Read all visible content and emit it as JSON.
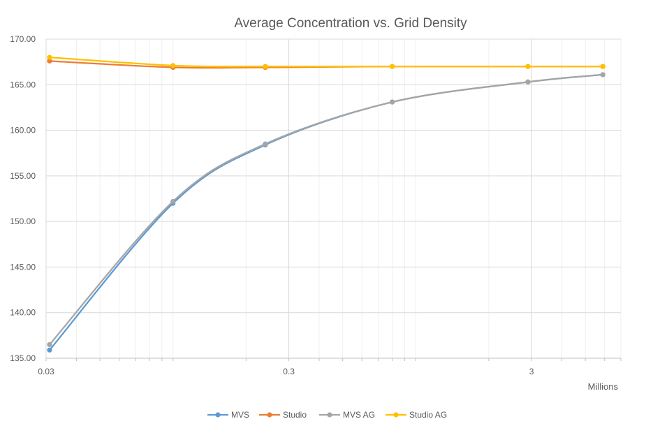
{
  "chart_data": {
    "type": "line",
    "title": "Average Concentration vs. Grid Density",
    "x_unit_label": "Millions",
    "x_scale": "log",
    "xlim": [
      0.03,
      7.0
    ],
    "ylim": [
      135,
      170
    ],
    "y_ticks": [
      "135.00",
      "140.00",
      "145.00",
      "150.00",
      "155.00",
      "160.00",
      "165.00",
      "170.00"
    ],
    "x_ticks": [
      {
        "value": 0.03,
        "label": "0.03"
      },
      {
        "value": 0.3,
        "label": "0.3"
      },
      {
        "value": 3,
        "label": "3"
      }
    ],
    "grid": true,
    "legend_position": "bottom",
    "series": [
      {
        "name": "MVS",
        "color": "#5B9BD5",
        "points": [
          [
            0.031,
            135.9
          ],
          [
            0.1,
            152.0
          ],
          [
            0.24,
            158.4
          ],
          [
            0.8,
            163.1
          ],
          [
            2.9,
            165.3
          ],
          [
            5.9,
            166.1
          ]
        ]
      },
      {
        "name": "Studio",
        "color": "#ED7D31",
        "points": [
          [
            0.031,
            167.6
          ],
          [
            0.1,
            166.9
          ],
          [
            0.24,
            166.9
          ],
          [
            0.8,
            167.0
          ],
          [
            2.9,
            167.0
          ],
          [
            5.9,
            167.0
          ]
        ]
      },
      {
        "name": "MVS AG",
        "color": "#A5A5A5",
        "points": [
          [
            0.031,
            136.5
          ],
          [
            0.1,
            152.2
          ],
          [
            0.24,
            158.5
          ],
          [
            0.8,
            163.1
          ],
          [
            2.9,
            165.3
          ],
          [
            5.9,
            166.1
          ]
        ]
      },
      {
        "name": "Studio AG",
        "color": "#FFC000",
        "points": [
          [
            0.031,
            168.0
          ],
          [
            0.1,
            167.1
          ],
          [
            0.24,
            167.0
          ],
          [
            0.8,
            167.0
          ],
          [
            2.9,
            167.0
          ],
          [
            5.9,
            167.0
          ]
        ]
      }
    ]
  }
}
